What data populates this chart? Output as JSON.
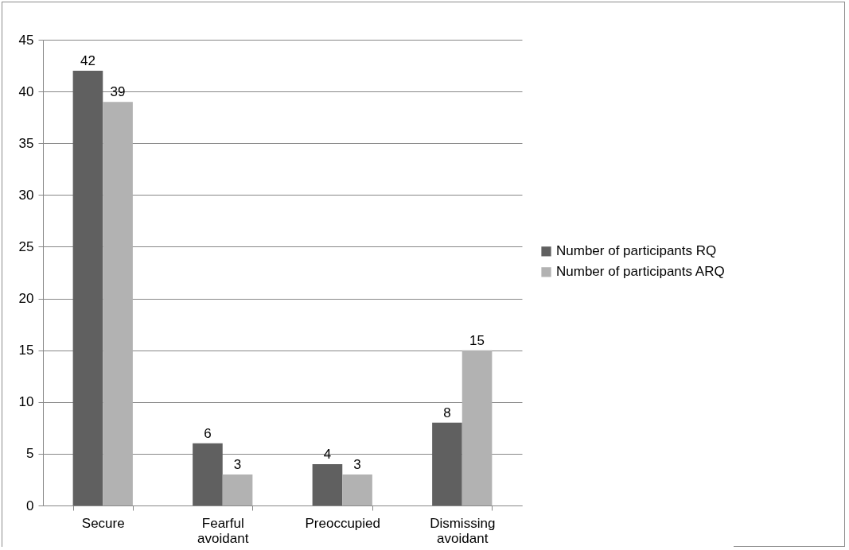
{
  "chart_data": {
    "type": "bar",
    "categories": [
      "Secure",
      "Fearful avoidant",
      "Preoccupied",
      "Dismissing avoidant"
    ],
    "series": [
      {
        "name": "Number of participants RQ",
        "color": "#606060",
        "values": [
          42,
          6,
          4,
          8
        ]
      },
      {
        "name": "Number of participants ARQ",
        "color": "#b2b2b2",
        "values": [
          39,
          3,
          3,
          15
        ]
      }
    ],
    "ylim": [
      0,
      45
    ],
    "yticks": [
      0,
      5,
      10,
      15,
      20,
      25,
      30,
      35,
      40,
      45
    ],
    "grid": "y",
    "legend": "right",
    "data_labels": true
  }
}
